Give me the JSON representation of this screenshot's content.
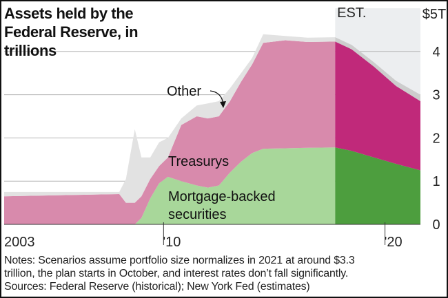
{
  "chart_data": {
    "type": "area",
    "title": "Assets held by the Federal Reserve, in trillions",
    "y_unit_top_label": "$5T",
    "yticks": [
      "0",
      "1",
      "2",
      "3",
      "4"
    ],
    "xticks": [
      "2003",
      "'10",
      "'20"
    ],
    "estimate_label": "EST.",
    "ylim": [
      0,
      5
    ],
    "xlim": [
      2002.8,
      2021.6
    ],
    "estimate_start": 2017.75,
    "series": [
      {
        "name": "Mortgage-backed securities",
        "color": "#a8d79a",
        "color_est": "#4d9e3e",
        "x": [
          2002.8,
          2008.7,
          2009.0,
          2009.4,
          2009.8,
          2010.2,
          2010.8,
          2011.5,
          2012.0,
          2012.5,
          2013.0,
          2013.5,
          2014.0,
          2014.5,
          2015.5,
          2016.5,
          2017.75,
          2018.5,
          2019.5,
          2020.5,
          2021.6
        ],
        "values": [
          0,
          0,
          0.15,
          0.6,
          0.95,
          1.1,
          1.0,
          0.9,
          0.85,
          0.9,
          1.2,
          1.45,
          1.65,
          1.75,
          1.76,
          1.77,
          1.78,
          1.7,
          1.55,
          1.4,
          1.25
        ]
      },
      {
        "name": "Treasurys",
        "color": "#d88aac",
        "color_est": "#c0297a",
        "x": [
          2002.8,
          2008.0,
          2008.3,
          2008.7,
          2009.0,
          2009.4,
          2009.8,
          2010.2,
          2010.8,
          2011.5,
          2012.0,
          2012.5,
          2013.0,
          2013.5,
          2014.0,
          2014.5,
          2015.5,
          2016.5,
          2017.75,
          2018.5,
          2019.5,
          2020.5,
          2021.6
        ],
        "values": [
          0.65,
          0.7,
          0.5,
          0.5,
          0.5,
          0.45,
          0.4,
          0.45,
          1.3,
          1.6,
          1.6,
          1.6,
          1.65,
          1.85,
          2.05,
          2.45,
          2.5,
          2.45,
          2.45,
          2.35,
          2.1,
          1.8,
          1.6
        ]
      },
      {
        "name": "Other",
        "color": "#e2e2e2",
        "color_est": "#cdcdcd",
        "x": [
          2002.8,
          2008.0,
          2008.3,
          2008.7,
          2009.0,
          2009.4,
          2009.8,
          2010.2,
          2010.8,
          2011.5,
          2012.0,
          2012.5,
          2013.0,
          2013.5,
          2014.0,
          2014.5,
          2015.5,
          2016.5,
          2017.75,
          2018.5,
          2019.5,
          2020.5,
          2021.6
        ],
        "values": [
          0.1,
          0.05,
          0.55,
          1.7,
          0.9,
          0.5,
          0.55,
          0.45,
          0.15,
          0.25,
          0.35,
          0.35,
          0.3,
          0.2,
          0.15,
          0.2,
          0.1,
          0.1,
          0.1,
          0.1,
          0.1,
          0.12,
          0.15
        ]
      }
    ],
    "annotations": {
      "other": "Other",
      "treasurys": "Treasurys",
      "mbs_line1": "Mortgage-backed",
      "mbs_line2": "securities"
    },
    "grid": true
  },
  "notes": {
    "line1": "Notes: Scenarios assume portfolio size normalizes in 2021 at around $3.3",
    "line2": "trillion, the plan starts in October, and interest rates don’t fall significantly.",
    "line3": "Sources: Federal Reserve (historical); New York Fed (estimates)"
  }
}
